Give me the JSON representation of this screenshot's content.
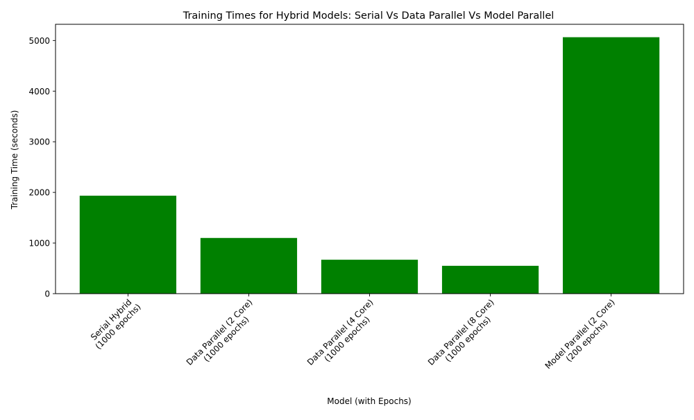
{
  "chart_data": {
    "type": "bar",
    "title": "Training Times for Hybrid Models: Serial Vs Data Parallel Vs Model Parallel",
    "xlabel": "Model (with Epochs)",
    "ylabel": "Training Time (seconds)",
    "categories": [
      [
        "Serial Hybrid",
        "(1000 epochs)"
      ],
      [
        "Data Parallel (2 Core)",
        "(1000 epochs)"
      ],
      [
        "Data Parallel (4 Core)",
        "(1000 epochs)"
      ],
      [
        "Data Parallel (8 Core)",
        "(1000 epochs)"
      ],
      [
        "Model Parallel (2 Core)",
        "(200 epochs)"
      ]
    ],
    "values": [
      1935,
      1100,
      670,
      550,
      5065
    ],
    "ylim": [
      0,
      5320
    ],
    "yticks": [
      0,
      1000,
      2000,
      3000,
      4000,
      5000
    ],
    "bar_color": "#008000",
    "grid": false,
    "legend": "none"
  }
}
